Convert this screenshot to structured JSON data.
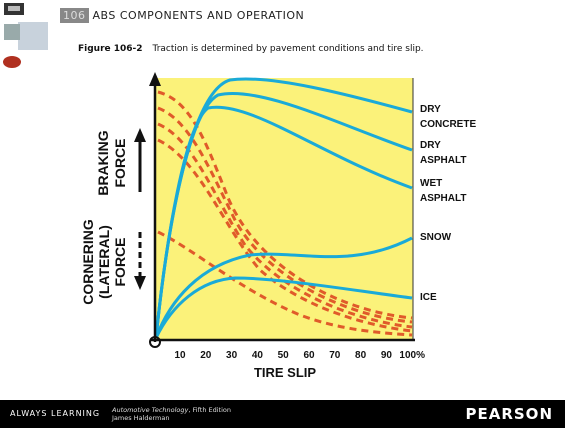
{
  "header": {
    "chapter": "106",
    "title": "ABS COMPONENTS AND OPERATION"
  },
  "figure": {
    "label": "Figure 106-2",
    "caption": "Traction is determined by pavement conditions and tire slip.",
    "x_ticks": [
      "10",
      "20",
      "30",
      "40",
      "50",
      "60",
      "70",
      "80",
      "90",
      "100%"
    ],
    "x_title": "TIRE SLIP",
    "y_labels": [
      [
        "BRAKING",
        "FORCE"
      ],
      [
        "CORNERING",
        "(LATERAL)",
        "FORCE"
      ]
    ],
    "curve_labels": [
      [
        "DRY",
        "CONCRETE"
      ],
      [
        "DRY",
        "ASPHALT"
      ],
      [
        "WET",
        "ASPHALT"
      ],
      [
        "SNOW"
      ],
      [
        "ICE"
      ]
    ]
  },
  "footer": {
    "tagline": "ALWAYS LEARNING",
    "book": "Automotive Technology",
    "edition": "Fifth Edition",
    "author": "James Halderman",
    "publisher": "PEARSON"
  }
}
